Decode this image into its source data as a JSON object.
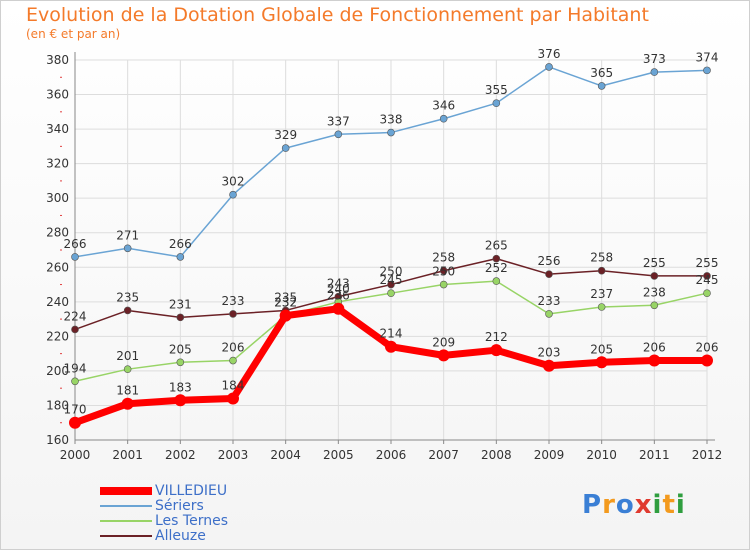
{
  "title": "Evolution de la Dotation Globale de Fonctionnement par Habitant",
  "subtitle": "(en € et par an)",
  "logo": {
    "letters": [
      "P",
      "r",
      "o",
      "x",
      "i",
      "t",
      "i"
    ],
    "colors": [
      "#3a7fd5",
      "#f39a1e",
      "#3a7fd5",
      "#e03a2f",
      "#2f9e3f",
      "#f39a1e",
      "#2f9e3f"
    ]
  },
  "chart_data": {
    "type": "line",
    "x": [
      "2000",
      "2001",
      "2002",
      "2003",
      "2004",
      "2005",
      "2006",
      "2007",
      "2008",
      "2009",
      "2010",
      "2011",
      "2012"
    ],
    "yticks": [
      160,
      180,
      200,
      220,
      240,
      260,
      280,
      300,
      320,
      340,
      360,
      380
    ],
    "ylim": [
      160,
      380
    ],
    "grid": true,
    "legend_placement": "bottom-left",
    "series": [
      {
        "name": "Sériers",
        "color": "#6aa4d4",
        "values": [
          266,
          271,
          266,
          302,
          329,
          337,
          338,
          346,
          355,
          376,
          365,
          373,
          374
        ]
      },
      {
        "name": "Alleuze",
        "color": "#6b2126",
        "values": [
          224,
          235,
          231,
          233,
          235,
          243,
          250,
          258,
          265,
          256,
          258,
          255,
          255
        ]
      },
      {
        "name": "Les Ternes",
        "color": "#98d466",
        "values": [
          194,
          201,
          205,
          206,
          232,
          240,
          245,
          250,
          252,
          233,
          237,
          238,
          245
        ]
      },
      {
        "name": "VILLEDIEU",
        "color": "#ff0000",
        "values": [
          170,
          181,
          183,
          184,
          232,
          236,
          214,
          209,
          212,
          203,
          205,
          206,
          206
        ]
      }
    ],
    "legend": [
      "VILLEDIEU",
      "Sériers",
      "Les Ternes",
      "Alleuze"
    ]
  }
}
